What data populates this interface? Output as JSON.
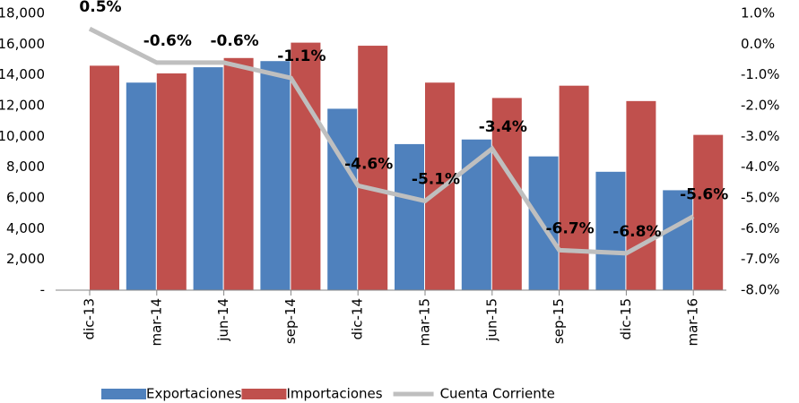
{
  "chart_data": {
    "type": "bar",
    "categories": [
      "dic-13",
      "mar-14",
      "jun-14",
      "sep-14",
      "dic-14",
      "mar-15",
      "jun-15",
      "sep-15",
      "dic-15",
      "mar-16"
    ],
    "series": [
      {
        "name": "Exportaciones",
        "type": "bar",
        "color": "#4f81bd",
        "values": [
          null,
          13500,
          14500,
          14900,
          11800,
          9500,
          9800,
          8700,
          7700,
          6500
        ]
      },
      {
        "name": "Importaciones",
        "type": "bar",
        "color": "#c0504d",
        "values": [
          14600,
          14100,
          15100,
          16100,
          15900,
          13500,
          12500,
          13300,
          12300,
          10100
        ]
      },
      {
        "name": "Cuenta Corriente",
        "type": "line",
        "axis": "y2",
        "color": "#bfbfbf",
        "values": [
          0.5,
          -0.6,
          -0.6,
          -1.1,
          -4.6,
          -5.1,
          -3.4,
          -6.7,
          -6.8,
          -5.6
        ],
        "value_labels": [
          "0.5%",
          "-0.6%",
          "-0.6%",
          "-1.1%",
          "-4.6%",
          "-5.1%",
          "-3.4%",
          "-6.7%",
          "-6.8%",
          "-5.6%"
        ]
      }
    ],
    "ylim": [
      0,
      18000
    ],
    "yticks": [
      {
        "value": 0,
        "label": "-"
      },
      {
        "value": 2000,
        "label": "2,000"
      },
      {
        "value": 4000,
        "label": "4,000"
      },
      {
        "value": 6000,
        "label": "6,000"
      },
      {
        "value": 8000,
        "label": "8,000"
      },
      {
        "value": 10000,
        "label": "10,000"
      },
      {
        "value": 12000,
        "label": "12,000"
      },
      {
        "value": 14000,
        "label": "14,000"
      },
      {
        "value": 16000,
        "label": "16,000"
      },
      {
        "value": 18000,
        "label": "18,000"
      }
    ],
    "y2lim": [
      -8,
      1
    ],
    "y2ticks": [
      {
        "value": -8,
        "label": "-8.0%"
      },
      {
        "value": -7,
        "label": "-7.0%"
      },
      {
        "value": -6,
        "label": "-6.0%"
      },
      {
        "value": -5,
        "label": "-5.0%"
      },
      {
        "value": -4,
        "label": "-4.0%"
      },
      {
        "value": -3,
        "label": "-3.0%"
      },
      {
        "value": -2,
        "label": "-2.0%"
      },
      {
        "value": -1,
        "label": "-1.0%"
      },
      {
        "value": 0,
        "label": "0.0%"
      },
      {
        "value": 1,
        "label": "1.0%"
      }
    ],
    "legend": "bottom"
  }
}
